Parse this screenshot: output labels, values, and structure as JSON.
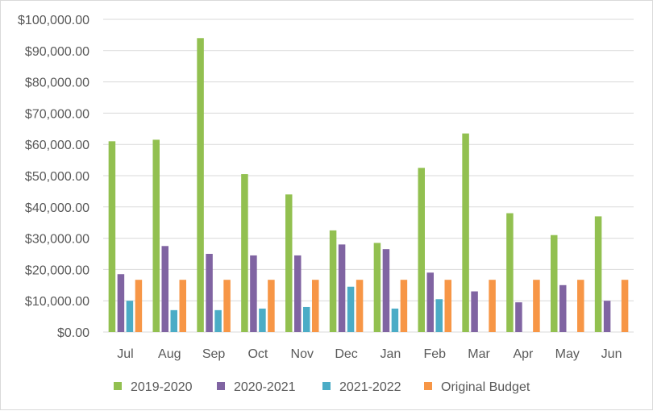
{
  "chart_data": {
    "type": "bar",
    "categories": [
      "Jul",
      "Aug",
      "Sep",
      "Oct",
      "Nov",
      "Dec",
      "Jan",
      "Feb",
      "Mar",
      "Apr",
      "May",
      "Jun"
    ],
    "series": [
      {
        "name": "2019-2020",
        "color": "#92c050",
        "values": [
          61000,
          61500,
          94000,
          50500,
          44000,
          32500,
          28500,
          52500,
          63500,
          38000,
          31000,
          37000
        ]
      },
      {
        "name": "2020-2021",
        "color": "#8064a2",
        "values": [
          18500,
          27500,
          25000,
          24500,
          24500,
          28000,
          26500,
          19000,
          13000,
          9500,
          15000,
          10000
        ]
      },
      {
        "name": "2021-2022",
        "color": "#4bacc6",
        "values": [
          10000,
          7000,
          7000,
          7500,
          8000,
          14500,
          7500,
          10500,
          null,
          null,
          null,
          null
        ]
      },
      {
        "name": "Original Budget",
        "color": "#f79646",
        "values": [
          16700,
          16700,
          16700,
          16700,
          16700,
          16700,
          16700,
          16700,
          16700,
          16700,
          16700,
          16700
        ]
      }
    ],
    "ylim": [
      0,
      100000
    ],
    "yticks": [
      0,
      10000,
      20000,
      30000,
      40000,
      50000,
      60000,
      70000,
      80000,
      90000,
      100000
    ],
    "ytick_labels": [
      "$0.00",
      "$10,000.00",
      "$20,000.00",
      "$30,000.00",
      "$40,000.00",
      "$50,000.00",
      "$60,000.00",
      "$70,000.00",
      "$80,000.00",
      "$90,000.00",
      "$100,000.00"
    ],
    "grid": true,
    "legend": "bottom"
  }
}
